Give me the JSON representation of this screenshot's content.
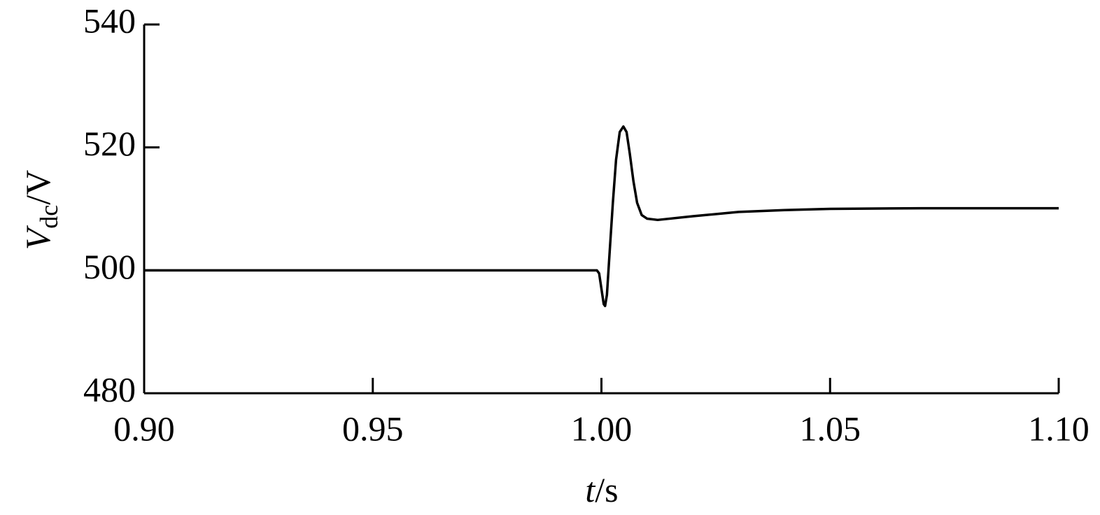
{
  "chart_data": {
    "type": "line",
    "ylabel": [
      "V",
      "dc",
      "/V"
    ],
    "xlabel": [
      "t",
      "/s"
    ],
    "xlim": [
      0.9,
      1.1
    ],
    "xticks": [
      {
        "value": 0.9,
        "label": "0.90"
      },
      {
        "value": 0.95,
        "label": "0.95"
      },
      {
        "value": 1,
        "label": "1.00"
      },
      {
        "value": 1.05,
        "label": "1.05"
      },
      {
        "value": 1.1,
        "label": "1.10"
      }
    ],
    "ylim": [
      480,
      540
    ],
    "yticks": [
      480,
      500,
      520,
      540
    ],
    "grid": false,
    "series": [
      {
        "color": "#000000",
        "x": [
          0.9,
          0.95,
          0.999,
          0.9995,
          1.0,
          1.0005,
          1.0008,
          1.0012,
          1.0018,
          1.0025,
          1.0032,
          1.004,
          1.0048,
          1.0055,
          1.0062,
          1.007,
          1.0078,
          1.0088,
          1.01,
          1.0123,
          1.02,
          1.03,
          1.04,
          1.05,
          1.07,
          1.1
        ],
        "values": [
          500,
          500,
          500,
          499.5,
          497,
          494.5,
          494.2,
          496,
          503,
          511,
          518,
          522.5,
          523.4,
          522.5,
          519,
          514.5,
          511,
          509,
          508.4,
          508.2,
          508.8,
          509.5,
          509.8,
          510,
          510.1,
          510.1
        ]
      }
    ]
  }
}
